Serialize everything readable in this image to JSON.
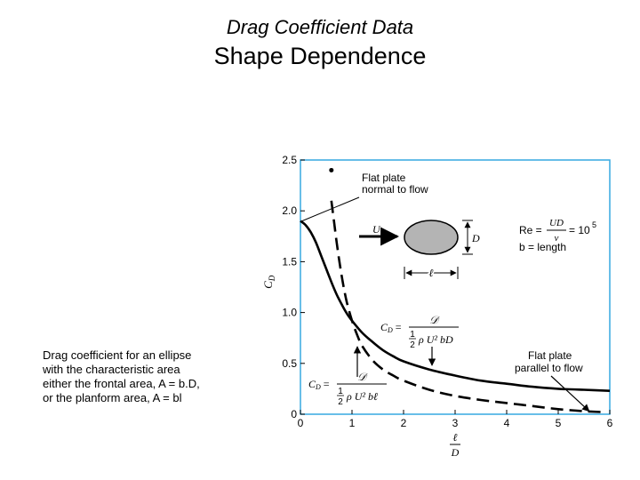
{
  "page": {
    "title": "Drag Coefficient Data",
    "subtitle": "Shape Dependence",
    "caption_lines": [
      "Drag coefficient for an ellipse",
      "with the characteristic area",
      "either the frontal area, A = b.D,",
      "or the planform area, A = bl"
    ]
  },
  "chart_data": {
    "type": "line",
    "xlim": [
      0,
      6
    ],
    "ylim": [
      0,
      2.5
    ],
    "x_ticks": [
      "0",
      "1",
      "2",
      "3",
      "4",
      "5",
      "6"
    ],
    "y_ticks": [
      "0",
      "0.5",
      "1.0",
      "1.5",
      "2.0",
      "2.5"
    ],
    "xlabel": {
      "num": "ℓ",
      "den": "D"
    },
    "ylabel": "C_D",
    "grid": false,
    "series": [
      {
        "style": "solid",
        "x": [
          0,
          0.1,
          0.2,
          0.3,
          0.4,
          0.5,
          0.6,
          0.7,
          0.8,
          0.9,
          1.0,
          1.2,
          1.4,
          1.6,
          1.8,
          2.0,
          2.5,
          3.0,
          3.5,
          4.0,
          4.5,
          5.0,
          5.5,
          6.0
        ],
        "y": [
          1.9,
          1.86,
          1.79,
          1.69,
          1.56,
          1.43,
          1.3,
          1.18,
          1.08,
          0.99,
          0.92,
          0.8,
          0.71,
          0.63,
          0.57,
          0.52,
          0.44,
          0.38,
          0.33,
          0.3,
          0.27,
          0.25,
          0.24,
          0.23
        ]
      },
      {
        "style": "dashed",
        "x": [
          0.6,
          0.65,
          0.7,
          0.75,
          0.8,
          0.85,
          0.9,
          1.0,
          1.1,
          1.2,
          1.4,
          1.6,
          1.8,
          2.0,
          2.5,
          3.0,
          3.5,
          4.0,
          4.5,
          5.0,
          5.5,
          5.9
        ],
        "y": [
          2.1,
          1.9,
          1.7,
          1.52,
          1.36,
          1.22,
          1.1,
          0.92,
          0.78,
          0.67,
          0.53,
          0.44,
          0.38,
          0.33,
          0.24,
          0.18,
          0.14,
          0.11,
          0.08,
          0.05,
          0.03,
          0.02
        ]
      }
    ],
    "annotations": {
      "flat_plate_normal": [
        "Flat plate",
        "normal to flow"
      ],
      "flat_plate_parallel": [
        "Flat plate",
        "parallel to flow"
      ],
      "normal_point": {
        "x": 0.6,
        "y": 2.4
      },
      "flow_arrow_label": "U",
      "diameter_label": "D",
      "length_label": "ℓ",
      "re_prefix": "Re =",
      "re_num": "UD",
      "re_den": "ν",
      "re_suffix": "= 10",
      "re_exp": "5",
      "b_def": "b = length",
      "cd_frontal": {
        "lhs": "C_D =",
        "num": "𝒟",
        "den_frac_num": "1",
        "den_frac_den": "2",
        "den_rest": "ρ U² bD"
      },
      "cd_planform": {
        "lhs": "C_D =",
        "num": "𝒟",
        "den_frac_num": "1",
        "den_frac_den": "2",
        "den_rest": "ρ U² bℓ"
      }
    },
    "colors": {
      "frame": "#36a9e1",
      "curve": "#000000"
    }
  }
}
